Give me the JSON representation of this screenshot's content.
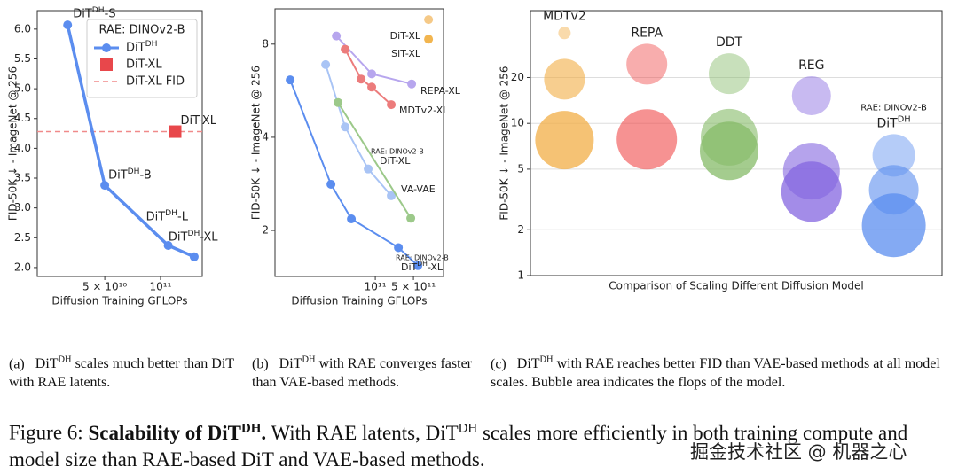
{
  "chart_data": [
    {
      "type": "line",
      "x_scale": "log",
      "y_label": "FID-50K ↓ - ImageNet @ 256",
      "x_label": "Diffusion Training GFLOPs",
      "xlim": [
        21600000000,
        168000000000
      ],
      "ylim": [
        1.85,
        6.31
      ],
      "xticks": [
        {
          "value": 50000000000,
          "label": "5 × 10¹⁰"
        },
        {
          "value": 100000000000,
          "label": "10¹¹"
        }
      ],
      "yticks": [
        {
          "value": 2,
          "label": "2.0"
        },
        2.5,
        {
          "value": 3,
          "label": "3.0"
        },
        3.5,
        {
          "value": 4,
          "label": "4.0"
        },
        4.5,
        {
          "value": 5,
          "label": "5.0"
        },
        5.5,
        {
          "value": 6,
          "label": "6.0"
        }
      ],
      "legend": "upper right",
      "legend_title": "RAE: DINOv2-B",
      "series": [
        {
          "name": "DiTDH",
          "color": "#5b8def",
          "marker": "circle",
          "x": [
            31500000000,
            50000000000,
            110000000000,
            152000000000
          ],
          "values": [
            6.07,
            3.38,
            2.37,
            2.18
          ],
          "point_labels": [
            "DiTDH-S",
            "DiTDH-B",
            "DiTDH-L",
            "DiTDH-XL"
          ]
        },
        {
          "name": "DiT-XL",
          "color": "#e8474b",
          "marker": "square",
          "x": [
            120000000000
          ],
          "values": [
            4.28
          ],
          "point_labels": [
            "DiT-XL"
          ]
        }
      ],
      "hlines": [
        {
          "name": "DiT-XL FID",
          "value": 4.28,
          "color": "#f08a8a"
        }
      ],
      "caption": {
        "label": "(a)",
        "text": "DiTDH scales much better than DiT with RAE latents."
      }
    },
    {
      "type": "line",
      "x_scale": "log",
      "y_scale": "log",
      "y_label": "FID-50K ↓ - ImageNet @ 256",
      "x_label": "Diffusion Training GFLOPs",
      "xlim": [
        1450000000,
        1780000000000
      ],
      "ylim": [
        1.42,
        10.4
      ],
      "xticks": [
        {
          "value": 100000000000,
          "label": "10¹¹"
        },
        {
          "value": 500000000000,
          "label": "5 × 10¹¹"
        }
      ],
      "yticks": [
        2,
        4,
        8
      ],
      "series": [
        {
          "name": "DiTDH-XL",
          "annotation": "RAE: DINOv2-B",
          "color": "#5b8def",
          "x": [
            2750000000,
            15400000000,
            36400000000,
            265000000000,
            603000000000
          ],
          "values": [
            6.13,
            2.82,
            2.18,
            1.76,
            1.54
          ]
        },
        {
          "name": "DiT-XL",
          "annotation": "RAE: DINOv2-B",
          "color": "#a9c4f5",
          "x": [
            12300000000,
            28000000000,
            74000000000,
            196000000000
          ],
          "values": [
            6.87,
            4.32,
            3.16,
            2.59
          ]
        },
        {
          "name": "VA-VAE",
          "color": "#9cc98a",
          "x": [
            20700000000,
            447000000000
          ],
          "values": [
            5.18,
            2.19
          ]
        },
        {
          "name": "REPA-XL",
          "color": "#b7a6ee",
          "x": [
            19300000000,
            86000000000,
            464000000000
          ],
          "values": [
            8.5,
            6.41,
            5.95
          ]
        },
        {
          "name": "MDTv2-XL",
          "color": "#ec7c7c",
          "x": [
            28000000000,
            55000000000,
            86000000000,
            196000000000
          ],
          "values": [
            7.7,
            6.17,
            5.81,
            5.1
          ]
        },
        {
          "name": "SiT-XL",
          "color": "#f2b54f",
          "x": [
            946000000000
          ],
          "values": [
            8.3
          ]
        },
        {
          "name": "DiT-XL",
          "color": "#f5c987",
          "x": [
            946000000000
          ],
          "values": [
            9.6
          ]
        }
      ],
      "caption": {
        "label": "(b)",
        "text": "DiTDH with RAE converges faster than VAE-based methods."
      }
    },
    {
      "type": "bubble",
      "y_scale": "log",
      "grid": true,
      "y_label": "FID-50K ↓ - ImageNet @ 256",
      "x_label": "Comparison of Scaling Different Diffusion Model",
      "ylim": [
        1,
        55
      ],
      "yticks": [
        1,
        2,
        5,
        10,
        20
      ],
      "categories": [
        "MDTv2",
        "REPA",
        "DDT",
        "REG",
        "DiTDH"
      ],
      "annotation": "RAE: DINOv2-B",
      "series": [
        {
          "color": "#f2ad45",
          "values": [
            39.2,
            19.5,
            7.76
          ],
          "sizes": [
            49,
            529,
            1089
          ]
        },
        {
          "color": "#f04a4a",
          "values": [
            24.5,
            7.85
          ],
          "sizes": [
            529,
            1156
          ]
        },
        {
          "color": "#86bb68",
          "values": [
            21.2,
            8.1,
            6.6
          ],
          "sizes": [
            529,
            1024,
            1089
          ]
        },
        {
          "color": "#8466e0",
          "values": [
            15.2,
            4.85,
            3.56
          ],
          "sizes": [
            484,
            1024,
            1156
          ]
        },
        {
          "color": "#5b8def",
          "values": [
            6.16,
            3.66,
            2.14
          ],
          "sizes": [
            576,
            784,
            1296
          ]
        }
      ],
      "caption": {
        "label": "(c)",
        "text": "DiTDH with RAE reaches better FID than VAE-based methods at all model scales. Bubble area indicates the flops of the model."
      }
    }
  ],
  "figure_caption": {
    "label": "Figure 6:",
    "title": "Scalability of DiTDH.",
    "text": "With RAE latents, DiTDH scales more efficiently in both training compute and model size than RAE-based DiT and VAE-based methods."
  },
  "watermark": "掘金技术社区 @ 机器之心"
}
